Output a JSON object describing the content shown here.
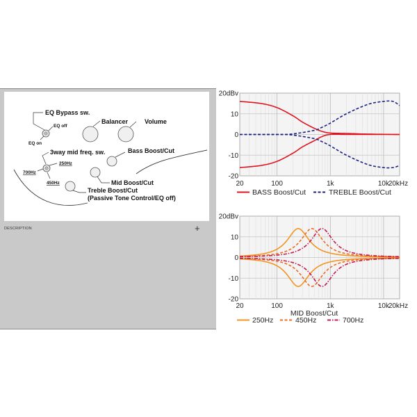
{
  "description": {
    "label": "DESCRIPTION",
    "expand_icon": "plus-icon"
  },
  "diagram": {
    "eq_bypass": "EQ Bypass sw.",
    "eq_off": "EQ off",
    "eq_on": "EQ on",
    "balancer": "Balancer",
    "volume": "Volume",
    "mid_freq_sw": "3way mid freq. sw.",
    "bass": "Bass Boost/Cut",
    "f250": "250Hz",
    "f700": "700Hz",
    "f450": "450Hz",
    "mid": "Mid Boost/Cut",
    "treble": "Treble Boost/Cut",
    "passive": "(Passive Tone Control/EQ off)"
  },
  "chart_data": [
    {
      "type": "line",
      "yunit_label": "20dBv",
      "ylim": [
        -20,
        20
      ],
      "yticks": [
        "20dBv",
        "10",
        "0",
        "-10",
        "-20"
      ],
      "xscale": "log",
      "xlim": [
        20,
        20000
      ],
      "xticks": [
        "20",
        "100",
        "1k",
        "10k",
        "20kHz"
      ],
      "grid": true,
      "legend_position": "bottom",
      "series": [
        {
          "name": "BASS Boost/Cut",
          "color": "#e0141e",
          "style": "solid",
          "curves": [
            {
              "x": [
                20,
                50,
                100,
                200,
                300,
                500,
                700,
                1000,
                2000,
                5000,
                20000
              ],
              "y": [
                16,
                15,
                13,
                9,
                6,
                3,
                1.5,
                0.7,
                0.5,
                0.2,
                0
              ]
            },
            {
              "x": [
                20,
                50,
                100,
                200,
                300,
                500,
                700,
                1000,
                2000,
                5000,
                20000
              ],
              "y": [
                -16,
                -15,
                -13,
                -9,
                -6,
                -3,
                -1,
                0,
                0,
                0,
                0
              ]
            }
          ]
        },
        {
          "name": "TREBLE Boost/Cut",
          "color": "#1a237e",
          "style": "dashed",
          "curves": [
            {
              "x": [
                20,
                100,
                200,
                500,
                700,
                1000,
                2000,
                5000,
                10000,
                15000,
                20000
              ],
              "y": [
                0,
                0,
                0.3,
                2,
                3.5,
                5.5,
                10,
                14.5,
                16,
                16,
                14
              ]
            },
            {
              "x": [
                20,
                100,
                200,
                500,
                700,
                1000,
                2000,
                5000,
                10000,
                15000,
                20000
              ],
              "y": [
                0,
                0,
                -0.3,
                -2,
                -3.5,
                -5.5,
                -10,
                -14.5,
                -16,
                -16,
                -15
              ]
            }
          ]
        }
      ]
    },
    {
      "type": "line",
      "title": "MID Boost/Cut",
      "yunit_label": "20dBv",
      "ylim": [
        -20,
        20
      ],
      "yticks": [
        "20dBv",
        "10",
        "0",
        "-10",
        "-20"
      ],
      "xscale": "log",
      "xlim": [
        20,
        20000
      ],
      "xticks": [
        "20",
        "100",
        "1k",
        "10k",
        "20kHz"
      ],
      "grid": true,
      "legend_position": "bottom",
      "series": [
        {
          "name": "250Hz",
          "color": "#f29420",
          "style": "solid",
          "center": 250,
          "gain": 14
        },
        {
          "name": "450Hz",
          "color": "#ee6a1f",
          "style": "dashed",
          "center": 450,
          "gain": 14
        },
        {
          "name": "700Hz",
          "color": "#c2184a",
          "style": "dashdot",
          "center": 700,
          "gain": 14
        }
      ]
    }
  ]
}
